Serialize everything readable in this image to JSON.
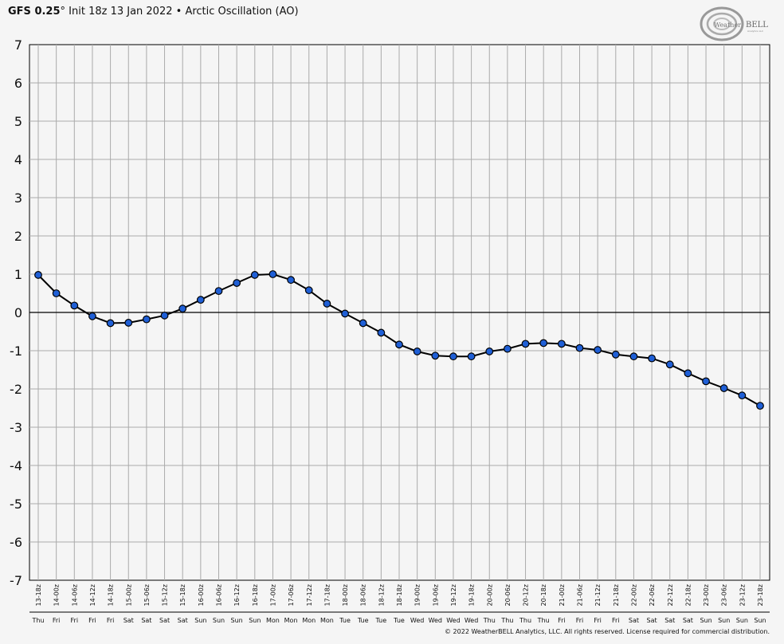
{
  "header": {
    "model": "GFS 0.25",
    "degree": "°",
    "init": "Init 18z 13 Jan 2022",
    "sep": "•",
    "product": "Arctic Oscillation (AO)"
  },
  "logo": {
    "text_weather": "Weather",
    "text_bell": "BELL",
    "subtext": "Analytics LLC"
  },
  "copyright": "© 2022 WeatherBELL Analytics, LLC. All rights reserved. License required for commercial distribution.",
  "colors": {
    "marker_fill": "#1f5fd6",
    "line": "#000000",
    "grid": "#aaaaaa",
    "zero_line": "#000000",
    "background": "#f5f5f5"
  },
  "chart_data": {
    "type": "line",
    "title": "Arctic Oscillation (AO)",
    "xlabel": "",
    "ylabel": "",
    "ylim": [
      -7,
      7
    ],
    "yticks": [
      7,
      6,
      5,
      4,
      3,
      2,
      1,
      0,
      -1,
      -2,
      -3,
      -4,
      -5,
      -6,
      -7
    ],
    "grid": true,
    "legend": "none",
    "categories": [
      "13-18z",
      "14-00z",
      "14-06z",
      "14-12z",
      "14-18z",
      "15-00z",
      "15-06z",
      "15-12z",
      "15-18z",
      "16-00z",
      "16-06z",
      "16-12z",
      "16-18z",
      "17-00z",
      "17-06z",
      "17-12z",
      "17-18z",
      "18-00z",
      "18-06z",
      "18-12z",
      "18-18z",
      "19-00z",
      "19-06z",
      "19-12z",
      "19-18z",
      "20-00z",
      "20-06z",
      "20-12z",
      "20-18z",
      "21-00z",
      "21-06z",
      "21-12z",
      "21-18z",
      "22-00z",
      "22-06z",
      "22-12z",
      "22-18z",
      "23-00z",
      "23-06z",
      "23-12z",
      "23-18z"
    ],
    "days": [
      "Thu",
      "Fri",
      "Fri",
      "Fri",
      "Fri",
      "Sat",
      "Sat",
      "Sat",
      "Sat",
      "Sun",
      "Sun",
      "Sun",
      "Sun",
      "Mon",
      "Mon",
      "Mon",
      "Mon",
      "Tue",
      "Tue",
      "Tue",
      "Tue",
      "Wed",
      "Wed",
      "Wed",
      "Wed",
      "Thu",
      "Thu",
      "Thu",
      "Thu",
      "Fri",
      "Fri",
      "Fri",
      "Fri",
      "Sat",
      "Sat",
      "Sat",
      "Sat",
      "Sun",
      "Sun",
      "Sun",
      "Sun"
    ],
    "series": [
      {
        "values": [
          0.98,
          0.5,
          0.18,
          -0.1,
          -0.28,
          -0.27,
          -0.18,
          -0.08,
          0.1,
          0.33,
          0.56,
          0.77,
          0.98,
          1.0,
          0.85,
          0.58,
          0.23,
          -0.03,
          -0.28,
          -0.53,
          -0.84,
          -1.02,
          -1.13,
          -1.15,
          -1.15,
          -1.02,
          -0.95,
          -0.82,
          -0.8,
          -0.82,
          -0.93,
          -0.98,
          -1.1,
          -1.15,
          -1.2,
          -1.36,
          -1.59,
          -1.8,
          -1.98,
          -2.17,
          -2.44
        ]
      }
    ]
  }
}
